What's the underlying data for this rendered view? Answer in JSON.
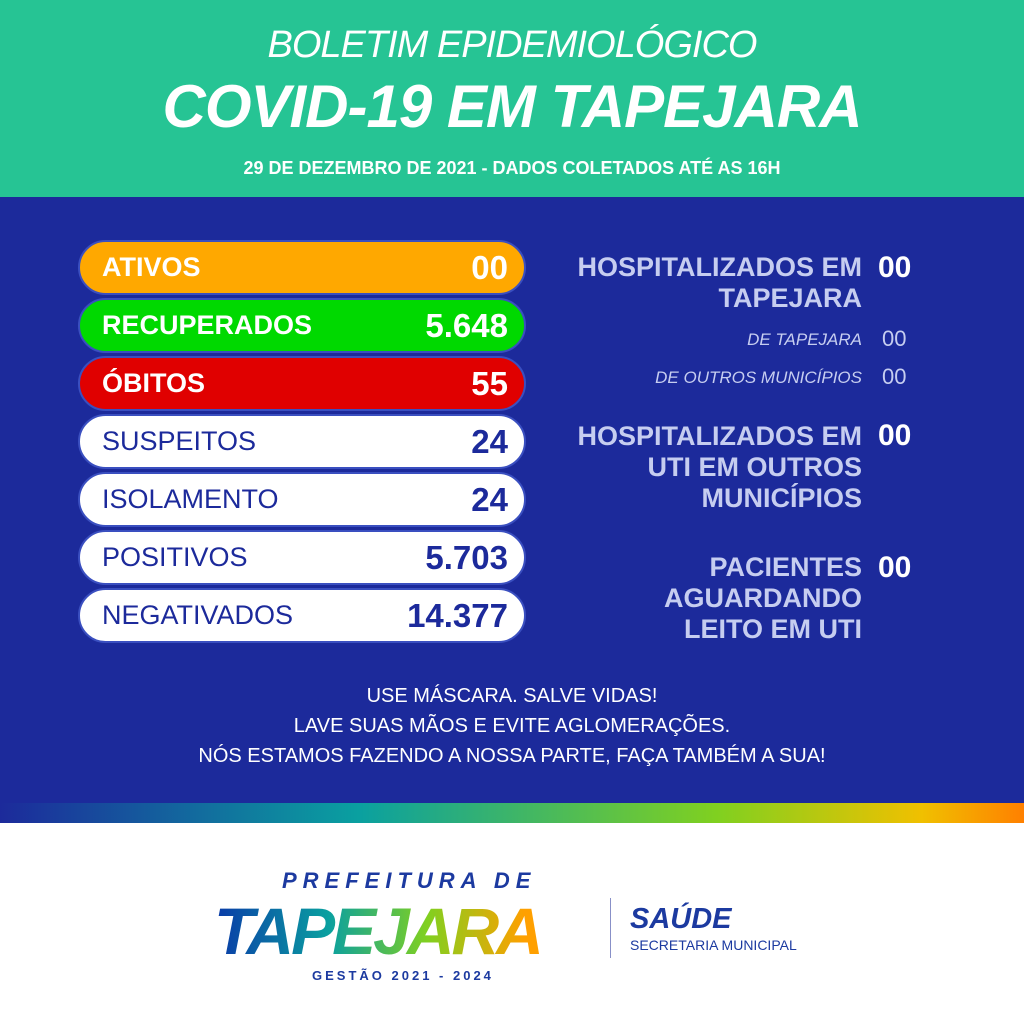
{
  "header": {
    "line1": "BOLETIM EPIDEMIOLÓGICO",
    "line2": "COVID-19 EM TAPEJARA",
    "date": "29 DE DEZEMBRO DE 2021 - DADOS COLETADOS ATÉ AS 16H"
  },
  "stats": [
    {
      "label": "ATIVOS",
      "value": "00",
      "color": "#ffa800"
    },
    {
      "label": "RECUPERADOS",
      "value": "5.648",
      "color": "#00d900"
    },
    {
      "label": "ÓBITOS",
      "value": "55",
      "color": "#e00000"
    },
    {
      "label": "SUSPEITOS",
      "value": "24"
    },
    {
      "label": "ISOLAMENTO",
      "value": "24"
    },
    {
      "label": "POSITIVOS",
      "value": "5.703"
    },
    {
      "label": "NEGATIVADOS",
      "value": "14.377"
    }
  ],
  "right": {
    "hosp_label": "HOSPITALIZADOS EM TAPEJARA",
    "hosp_value": "00",
    "de_tapejara_label": "DE TAPEJARA",
    "de_tapejara_value": "00",
    "outros_label": "DE OUTROS MUNICÍPIOS",
    "outros_value": "00",
    "uti_label": "HOSPITALIZADOS EM UTI EM OUTROS MUNICÍPIOS",
    "uti_value": "00",
    "aguard_label": "PACIENTES AGUARDANDO LEITO EM UTI",
    "aguard_value": "00"
  },
  "messages": [
    "USE MÁSCARA. SALVE VIDAS!",
    "LAVE SUAS MÃOS E EVITE AGLOMERAÇÕES.",
    "NÓS ESTAMOS FAZENDO A NOSSA PARTE, FAÇA TAMBÉM A SUA!"
  ],
  "logo": {
    "prefeitura": "PREFEITURA DE",
    "city": "TAPEJARA",
    "gestao": "GESTÃO 2021 - 2024",
    "saude": "SAÚDE",
    "secretaria": "SECRETARIA MUNICIPAL"
  },
  "colors": {
    "header": "#26c494",
    "main": "#1c2a9b"
  }
}
